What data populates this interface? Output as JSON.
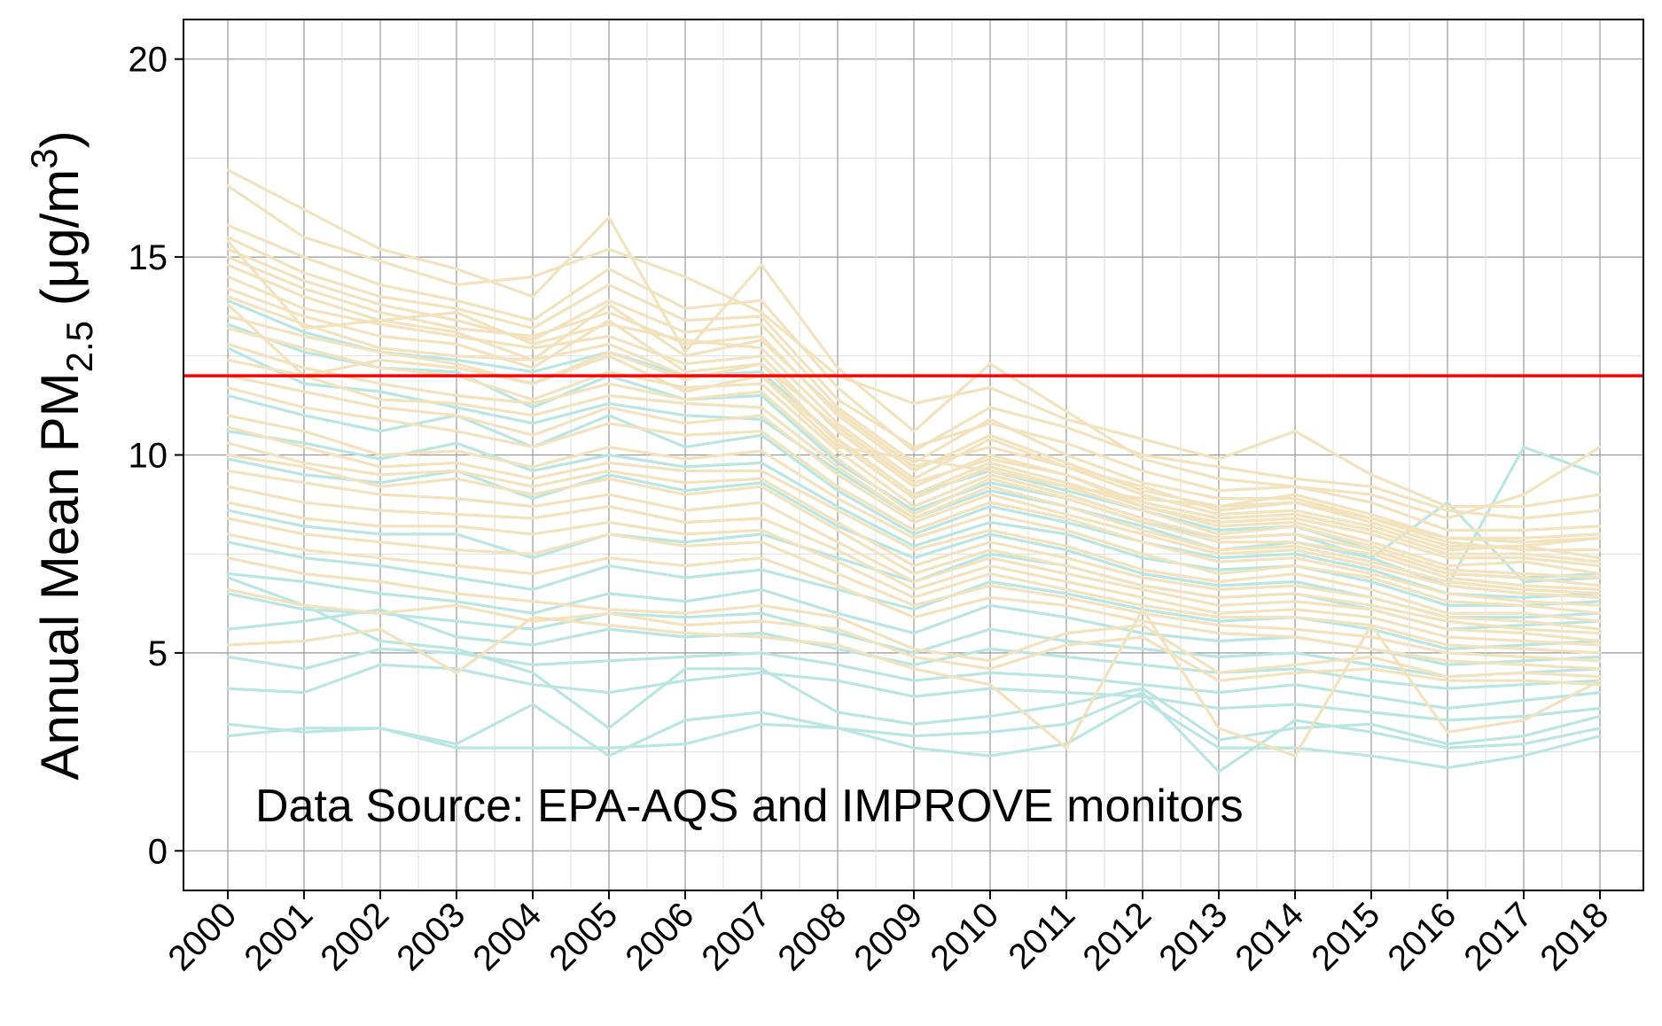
{
  "chart_data": {
    "type": "line",
    "x": [
      "2000",
      "2001",
      "2002",
      "2003",
      "2004",
      "2005",
      "2006",
      "2007",
      "2008",
      "2009",
      "2010",
      "2011",
      "2012",
      "2013",
      "2014",
      "2015",
      "2016",
      "2017",
      "2018"
    ],
    "ylabel": {
      "main": "Annual Mean PM",
      "subscript": "2.5",
      "unit_open": " (μg/m",
      "superscript": "3",
      "unit_close": ")"
    },
    "ylim": [
      -1,
      21
    ],
    "yticks": [
      0,
      5,
      10,
      15,
      20
    ],
    "grid": true,
    "annotation": "Data Source: EPA-AQS and IMPROVE monitors",
    "reference_line": {
      "value": 12,
      "color": "#ff0000"
    },
    "series_colors": {
      "group_a": "#f2e2bd",
      "group_b": "#b9e6e1"
    },
    "series": [
      {
        "group": "group_a",
        "values": [
          17.2,
          16.2,
          15.2,
          14.7,
          14.0,
          16.0,
          12.6,
          14.8,
          12.2,
          10.6,
          12.3,
          11.1,
          9.9,
          9.4,
          9.2,
          9.0,
          8.4,
          9.0,
          10.2
        ]
      },
      {
        "group": "group_a",
        "values": [
          16.8,
          15.5,
          14.9,
          14.3,
          14.5,
          15.2,
          14.5,
          13.6,
          12.0,
          11.3,
          11.7,
          10.9,
          10.4,
          9.9,
          10.6,
          9.5,
          8.7,
          8.7,
          9.0
        ]
      },
      {
        "group": "group_a",
        "values": [
          15.8,
          15.0,
          14.3,
          13.9,
          13.4,
          14.7,
          13.7,
          13.9,
          11.7,
          10.1,
          11.2,
          10.7,
          10.0,
          9.7,
          9.4,
          9.2,
          8.6,
          8.4,
          8.6
        ]
      },
      {
        "group": "group_a",
        "values": [
          15.5,
          14.6,
          14.0,
          13.7,
          13.2,
          14.3,
          13.4,
          13.5,
          11.4,
          10.2,
          10.8,
          10.3,
          9.6,
          9.1,
          9.2,
          8.8,
          8.1,
          8.1,
          8.2
        ]
      },
      {
        "group": "group_a",
        "values": [
          15.2,
          14.4,
          13.8,
          13.4,
          12.9,
          13.9,
          13.1,
          13.3,
          11.2,
          9.8,
          10.9,
          10.0,
          9.3,
          8.9,
          8.9,
          8.4,
          7.9,
          7.8,
          7.9
        ]
      },
      {
        "group": "group_a",
        "values": [
          15.0,
          14.2,
          13.6,
          13.2,
          13.0,
          13.6,
          12.8,
          13.0,
          11.0,
          9.6,
          10.5,
          9.8,
          9.1,
          8.7,
          8.8,
          8.4,
          7.8,
          7.6,
          7.6
        ]
      },
      {
        "group": "group_a",
        "values": [
          14.8,
          14.0,
          13.4,
          13.6,
          12.8,
          13.3,
          12.9,
          12.7,
          10.8,
          9.4,
          10.4,
          9.7,
          9.0,
          8.5,
          8.6,
          8.2,
          7.6,
          7.7,
          7.4
        ]
      },
      {
        "group": "group_a",
        "values": [
          14.5,
          13.7,
          13.3,
          13.0,
          12.7,
          13.0,
          12.3,
          12.5,
          10.6,
          9.2,
          10.0,
          9.5,
          8.8,
          8.4,
          8.5,
          8.1,
          7.5,
          7.5,
          7.3
        ]
      },
      {
        "group": "group_a",
        "values": [
          14.2,
          13.5,
          13.0,
          12.8,
          12.2,
          13.4,
          12.1,
          12.3,
          10.7,
          9.3,
          9.9,
          9.5,
          8.7,
          8.3,
          8.4,
          8.0,
          7.4,
          7.4,
          7.2
        ]
      },
      {
        "group": "group_a",
        "values": [
          14.0,
          13.3,
          12.7,
          12.5,
          12.4,
          12.8,
          12.0,
          12.0,
          10.4,
          9.0,
          9.8,
          9.3,
          8.7,
          8.2,
          8.3,
          7.8,
          7.2,
          7.3,
          7.0
        ]
      },
      {
        "group": "group_a",
        "values": [
          13.5,
          13.0,
          12.6,
          12.3,
          11.8,
          12.6,
          11.9,
          12.3,
          10.3,
          8.9,
          9.7,
          9.2,
          8.6,
          8.0,
          8.2,
          7.7,
          7.1,
          7.0,
          6.9
        ]
      },
      {
        "group": "group_a",
        "values": [
          13.2,
          12.7,
          12.2,
          12.0,
          11.4,
          12.1,
          11.7,
          11.8,
          10.1,
          8.7,
          9.5,
          9.0,
          8.4,
          7.9,
          8.0,
          7.6,
          7.0,
          6.9,
          6.7
        ]
      },
      {
        "group": "group_a",
        "values": [
          12.8,
          12.2,
          11.8,
          11.5,
          11.3,
          11.8,
          11.4,
          11.6,
          9.9,
          8.5,
          9.4,
          8.9,
          8.3,
          7.8,
          7.8,
          7.5,
          6.9,
          6.7,
          6.6
        ]
      },
      {
        "group": "group_a",
        "values": [
          12.4,
          12.0,
          11.4,
          11.3,
          11.0,
          11.5,
          11.3,
          11.2,
          9.7,
          8.4,
          9.2,
          8.7,
          8.1,
          7.6,
          7.7,
          7.3,
          6.8,
          6.6,
          6.5
        ]
      },
      {
        "group": "group_a",
        "values": [
          12.0,
          11.6,
          11.2,
          11.0,
          10.5,
          11.2,
          10.8,
          11.0,
          9.5,
          8.3,
          9.0,
          8.5,
          8.0,
          7.5,
          7.6,
          7.2,
          6.7,
          6.5,
          6.4
        ]
      },
      {
        "group": "group_a",
        "values": [
          11.7,
          11.2,
          10.9,
          10.6,
          10.2,
          10.8,
          10.5,
          10.6,
          9.2,
          8.1,
          8.8,
          8.4,
          7.8,
          7.3,
          7.4,
          7.0,
          6.5,
          6.3,
          6.2
        ]
      },
      {
        "group": "group_a",
        "values": [
          11.0,
          10.6,
          10.0,
          10.1,
          9.7,
          10.2,
          9.9,
          10.1,
          8.9,
          7.9,
          8.5,
          8.1,
          7.5,
          7.0,
          7.2,
          6.9,
          6.3,
          6.2,
          6.0
        ]
      },
      {
        "group": "group_a",
        "values": [
          10.7,
          10.2,
          9.7,
          9.8,
          9.4,
          9.8,
          9.6,
          9.6,
          8.6,
          7.6,
          8.1,
          7.7,
          7.1,
          6.8,
          7.0,
          6.6,
          6.0,
          6.0,
          5.8
        ]
      },
      {
        "group": "group_a",
        "values": [
          10.3,
          9.8,
          9.5,
          9.6,
          9.2,
          9.6,
          9.3,
          9.4,
          8.3,
          7.2,
          7.8,
          7.4,
          6.9,
          6.6,
          6.7,
          6.4,
          5.9,
          5.8,
          5.6
        ]
      },
      {
        "group": "group_a",
        "values": [
          10.0,
          9.7,
          9.2,
          9.4,
          9.0,
          9.4,
          9.0,
          9.2,
          8.1,
          7.0,
          7.6,
          7.2,
          6.7,
          6.4,
          6.5,
          6.2,
          5.8,
          5.6,
          5.5
        ]
      },
      {
        "group": "group_a",
        "values": [
          9.6,
          9.3,
          9.0,
          8.9,
          8.7,
          9.0,
          8.6,
          8.8,
          7.8,
          6.8,
          7.4,
          7.0,
          6.6,
          6.2,
          6.3,
          6.1,
          5.6,
          5.5,
          5.3
        ]
      },
      {
        "group": "group_a",
        "values": [
          9.2,
          8.8,
          8.6,
          8.5,
          8.4,
          8.7,
          8.3,
          8.4,
          7.6,
          6.6,
          7.2,
          6.8,
          6.4,
          6.0,
          6.1,
          5.9,
          5.4,
          5.3,
          5.2
        ]
      },
      {
        "group": "group_a",
        "values": [
          8.8,
          8.4,
          8.2,
          8.2,
          8.0,
          8.3,
          8.0,
          8.1,
          7.3,
          6.4,
          7.0,
          6.6,
          6.2,
          5.9,
          5.9,
          5.7,
          5.2,
          5.1,
          5.0
        ]
      },
      {
        "group": "group_a",
        "values": [
          8.4,
          8.0,
          7.8,
          7.6,
          7.5,
          8.0,
          7.7,
          7.8,
          7.0,
          6.2,
          6.7,
          6.4,
          6.0,
          5.7,
          5.6,
          5.4,
          5.0,
          4.9,
          4.8
        ]
      },
      {
        "group": "group_a",
        "values": [
          8.0,
          7.6,
          7.4,
          7.2,
          7.0,
          7.4,
          7.2,
          7.4,
          6.7,
          5.9,
          6.4,
          6.2,
          5.8,
          5.5,
          5.4,
          5.1,
          4.8,
          4.7,
          4.6
        ]
      },
      {
        "group": "group_a",
        "values": [
          7.4,
          7.0,
          6.8,
          6.5,
          6.3,
          6.1,
          6.0,
          6.2,
          5.9,
          5.1,
          4.8,
          5.5,
          5.7,
          4.5,
          4.7,
          4.9,
          4.4,
          4.5,
          4.4
        ]
      },
      {
        "group": "group_a",
        "values": [
          6.6,
          6.2,
          6.0,
          6.2,
          5.8,
          6.0,
          5.7,
          5.8,
          5.6,
          4.9,
          4.6,
          5.2,
          5.4,
          4.3,
          4.5,
          4.6,
          4.3,
          4.3,
          4.2
        ]
      },
      {
        "group": "group_a",
        "values": [
          5.2,
          5.3,
          5.6,
          4.5,
          5.9,
          5.7,
          5.5,
          5.4,
          5.2,
          4.6,
          4.2,
          2.6,
          6.1,
          3.1,
          2.4,
          5.7,
          3.0,
          3.3,
          4.3
        ]
      },
      {
        "group": "group_a",
        "values": [
          13.8,
          12.0,
          12.4,
          12.2,
          11.8,
          12.5,
          11.6,
          12.0,
          10.2,
          9.9,
          9.6,
          9.2,
          8.9,
          8.7,
          9.0,
          8.5,
          7.9,
          7.9,
          8.0
        ]
      },
      {
        "group": "group_a",
        "values": [
          15.4,
          13.2,
          13.4,
          13.1,
          12.4,
          13.8,
          12.5,
          12.9,
          11.1,
          9.7,
          10.2,
          9.7,
          9.2,
          8.6,
          8.8,
          8.3,
          7.7,
          7.7,
          7.9
        ]
      },
      {
        "group": "group_b",
        "values": [
          13.9,
          13.1,
          12.6,
          12.4,
          12.1,
          12.6,
          12.0,
          12.1,
          10.4,
          9.0,
          9.6,
          9.1,
          8.6,
          8.1,
          8.2,
          7.6,
          7.0,
          6.9,
          7.0
        ]
      },
      {
        "group": "group_b",
        "values": [
          13.3,
          12.6,
          12.2,
          12.1,
          11.2,
          12.0,
          11.4,
          11.5,
          9.8,
          8.6,
          9.3,
          8.9,
          8.3,
          7.9,
          8.0,
          7.4,
          8.8,
          6.8,
          6.9
        ]
      },
      {
        "group": "group_b",
        "values": [
          12.7,
          11.8,
          11.6,
          11.2,
          10.8,
          11.3,
          11.0,
          10.9,
          9.6,
          8.4,
          9.1,
          8.7,
          8.2,
          7.6,
          7.8,
          7.4,
          6.7,
          10.2,
          9.5
        ]
      },
      {
        "group": "group_b",
        "values": [
          11.5,
          11.0,
          10.6,
          11.0,
          10.2,
          11.0,
          10.2,
          10.5,
          9.1,
          8.0,
          8.7,
          8.3,
          7.8,
          7.4,
          7.5,
          7.1,
          6.5,
          6.4,
          6.5
        ]
      },
      {
        "group": "group_b",
        "values": [
          10.6,
          10.3,
          9.9,
          10.3,
          9.6,
          10.0,
          9.7,
          9.8,
          8.7,
          7.7,
          8.3,
          8.0,
          7.4,
          7.1,
          7.2,
          6.8,
          6.2,
          6.2,
          6.3
        ]
      },
      {
        "group": "group_b",
        "values": [
          9.9,
          9.5,
          9.3,
          9.6,
          8.9,
          9.5,
          9.1,
          9.3,
          8.2,
          7.4,
          8.0,
          7.6,
          7.0,
          6.7,
          6.8,
          6.4,
          5.9,
          5.9,
          6.0
        ]
      },
      {
        "group": "group_b",
        "values": [
          8.6,
          8.2,
          8.0,
          8.0,
          7.4,
          8.0,
          7.8,
          8.0,
          7.4,
          6.8,
          7.5,
          7.2,
          6.7,
          6.4,
          6.5,
          6.1,
          5.6,
          5.7,
          5.8
        ]
      },
      {
        "group": "group_b",
        "values": [
          7.8,
          7.4,
          7.2,
          6.9,
          6.6,
          7.2,
          6.9,
          7.1,
          6.6,
          6.1,
          6.8,
          6.5,
          6.1,
          5.8,
          5.9,
          5.6,
          5.1,
          5.2,
          5.3
        ]
      },
      {
        "group": "group_b",
        "values": [
          7.0,
          6.8,
          6.5,
          6.3,
          6.0,
          6.5,
          6.3,
          6.6,
          6.0,
          5.5,
          6.2,
          5.9,
          5.5,
          5.3,
          5.4,
          5.1,
          4.7,
          4.8,
          4.9
        ]
      },
      {
        "group": "group_b",
        "values": [
          6.5,
          6.1,
          6.0,
          5.8,
          5.6,
          6.0,
          5.9,
          6.0,
          5.5,
          5.0,
          5.6,
          5.3,
          5.1,
          4.9,
          5.0,
          4.7,
          4.4,
          4.5,
          4.6
        ]
      },
      {
        "group": "group_b",
        "values": [
          5.6,
          5.8,
          6.1,
          5.4,
          5.2,
          5.6,
          5.4,
          5.5,
          5.1,
          4.7,
          5.1,
          4.9,
          4.7,
          4.5,
          4.6,
          4.3,
          4.1,
          4.2,
          4.3
        ]
      },
      {
        "group": "group_b",
        "values": [
          4.9,
          4.6,
          5.1,
          5.0,
          4.7,
          4.8,
          4.9,
          5.0,
          4.7,
          4.3,
          4.5,
          4.4,
          4.2,
          4.0,
          4.2,
          3.9,
          3.6,
          3.8,
          4.0
        ]
      },
      {
        "group": "group_b",
        "values": [
          4.1,
          4.0,
          4.7,
          4.6,
          4.2,
          4.0,
          4.3,
          4.5,
          4.3,
          3.9,
          4.1,
          4.0,
          3.9,
          3.6,
          3.7,
          3.5,
          3.3,
          3.4,
          3.6
        ]
      },
      {
        "group": "group_b",
        "values": [
          3.2,
          3.0,
          3.1,
          2.7,
          3.7,
          2.4,
          3.3,
          3.5,
          3.1,
          2.9,
          3.0,
          3.2,
          4.0,
          2.0,
          3.3,
          3.0,
          2.6,
          2.7,
          3.1
        ]
      },
      {
        "group": "group_b",
        "values": [
          2.9,
          3.1,
          3.1,
          2.6,
          2.6,
          2.6,
          2.7,
          3.2,
          3.1,
          2.6,
          2.4,
          2.7,
          3.8,
          2.6,
          2.6,
          2.4,
          2.1,
          2.4,
          2.9
        ]
      },
      {
        "group": "group_b",
        "values": [
          6.9,
          6.2,
          5.3,
          5.1,
          4.5,
          3.1,
          4.6,
          4.6,
          3.5,
          3.2,
          3.4,
          3.7,
          4.1,
          2.8,
          3.1,
          3.2,
          2.7,
          2.9,
          3.4
        ]
      }
    ]
  }
}
